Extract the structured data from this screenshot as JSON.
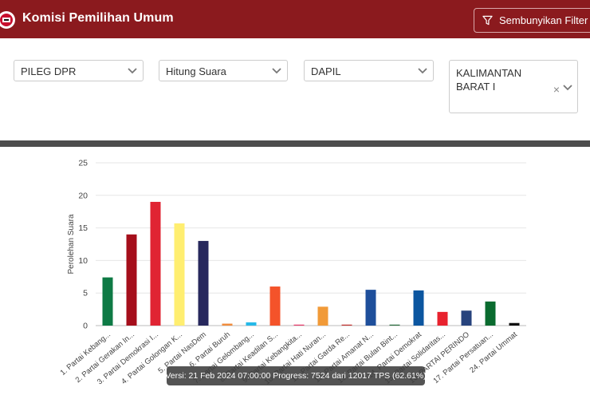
{
  "header": {
    "title": "Komisi Pemilihan Umum",
    "filter_toggle_label": "Sembunyikan Filter"
  },
  "filters": {
    "election": "PILEG DPR",
    "mode": "Hitung Suara",
    "region_type": "DAPIL",
    "region_line1": "KALIMANTAN",
    "region_line2": "BARAT I",
    "clear_symbol": "×"
  },
  "colors": {
    "header": "#8b1a1e",
    "divider": "#4d4d4d"
  },
  "chart_data": {
    "type": "bar",
    "ylabel": "Perolehan Suara",
    "ylim": [
      0,
      25
    ],
    "yticks": [
      0,
      5,
      10,
      15,
      20,
      25
    ],
    "grid": true,
    "categories": [
      "1. Partai Kebang...",
      "2. Partai Gerakan In...",
      "3. Partai Demokrasi I...",
      "4. Partai Golongan K...",
      "5. Partai NasDem",
      "6. Partai Buruh",
      "7. Partai Gelombang...",
      "8. Partai Keadilan S...",
      "9. Partai Kebangkita...",
      "10. Partai Hati Nuran...",
      "11. Partai Garda Re...",
      "12. Partai Amanat N...",
      "13. Partai Bulan Bint...",
      "14. Partai Demokrat",
      "15. Partai Solidaritas...",
      "16. PARTAI PERINDO",
      "17. Partai Persatuan...",
      "24. Partai Ummat"
    ],
    "visible_labels": [
      "1. Partai Kebang...",
      "2. Partai Gerakan In...",
      "3. Partai Demokrasi I...",
      "4. Partai Golongan K...",
      "5. Partai NasDem",
      "6. Partai Buruh",
      "7. Partai Gelombang...",
      "8. Partai Keadilan S...",
      "9. Partai Kebangkita...",
      "10. Partai Hati Nuran...",
      "11. Partai Garda Re...",
      "12. Partai Amanat N...",
      "13. Partai Bulan Bint...",
      "14. Partai Demokrat",
      "15. Partai Solidaritas...",
      "16. PARTAI PERINDO",
      "17. Partai Persatuan...",
      "24. Partai Ummat"
    ],
    "values": [
      7.4,
      14,
      19,
      15.7,
      13,
      0.3,
      0.5,
      6,
      0.15,
      2.9,
      0.15,
      5.5,
      0.15,
      5.4,
      2.1,
      2.3,
      3.7,
      0.4
    ],
    "colors": [
      "#0e7a45",
      "#a50e1b",
      "#e02433",
      "#ffee70",
      "#27285d",
      "#f08c3c",
      "#26b9e8",
      "#f4532a",
      "#e63b6a",
      "#f19a38",
      "#c2322f",
      "#1e4f9b",
      "#2a6e3f",
      "#0c56a0",
      "#e8222e",
      "#27437d",
      "#0a6b2f",
      "#111111"
    ]
  },
  "tooltip": {
    "text": "Versi: 21 Feb 2024 07:00:00 Progress: 7524 dari 12017 TPS (62.61%)"
  }
}
